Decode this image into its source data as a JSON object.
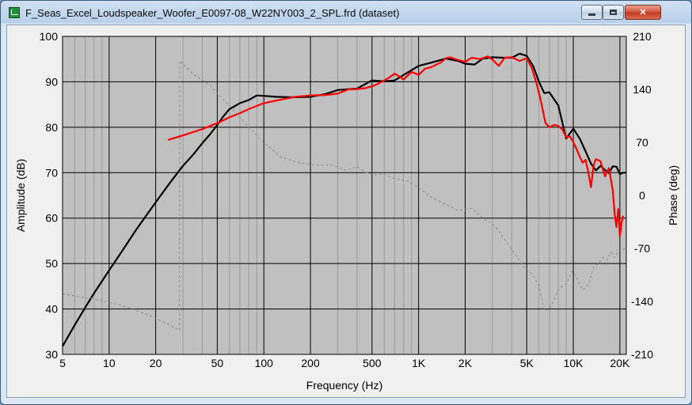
{
  "window": {
    "title": "F_Seas_Excel_Loudspeaker_Woofer_E0097-08_W22NY003_2_SPL.frd (dataset)",
    "minimize_label": "",
    "maximize_label": "",
    "close_label": "✕"
  },
  "chart_data": {
    "type": "line",
    "title": "",
    "xlabel": "Frequency (Hz)",
    "ylabel": "Amplitude (dB)",
    "y2label": "Phase (deg)",
    "xscale": "log",
    "xlim": [
      5,
      22000
    ],
    "ylim": [
      30,
      100
    ],
    "y2lim": [
      -210,
      210
    ],
    "grid": true,
    "background": "#c0c0c0",
    "x_ticks": [
      5,
      10,
      20,
      50,
      100,
      200,
      500,
      1000,
      2000,
      5000,
      10000,
      20000
    ],
    "x_tick_labels": [
      "5",
      "10",
      "20",
      "50",
      "100",
      "200",
      "500",
      "1K",
      "2K",
      "5K",
      "10K",
      "20K"
    ],
    "y_ticks": [
      30,
      40,
      50,
      60,
      70,
      80,
      90,
      100
    ],
    "y_tick_labels": [
      "30",
      "40",
      "50",
      "60",
      "70",
      "80",
      "90",
      "100"
    ],
    "y2_ticks": [
      -210,
      -140,
      -70,
      0,
      70,
      140,
      210
    ],
    "y2_tick_labels": [
      "-210",
      "-140",
      "-70",
      "0",
      "70",
      "140",
      "210"
    ],
    "series": [
      {
        "color": "#000000",
        "style": "solid",
        "axis": "left",
        "x": [
          5,
          6,
          7,
          8,
          10,
          12,
          15,
          20,
          25,
          30,
          35,
          40,
          45,
          50,
          55,
          60,
          70,
          80,
          90,
          100,
          120,
          150,
          200,
          250,
          300,
          400,
          500,
          600,
          700,
          800,
          1000,
          1200,
          1500,
          1800,
          2000,
          2300,
          2600,
          3000,
          3500,
          4000,
          4500,
          5000,
          5500,
          6000,
          6500,
          7000,
          7500,
          8000,
          9000,
          10000,
          11000,
          12000,
          13000,
          14000,
          15000,
          16000,
          17000,
          18000,
          19000,
          20000,
          21000,
          22000
        ],
        "y": [
          31.8,
          36.5,
          40.3,
          43.5,
          48.5,
          52.5,
          57.5,
          63.5,
          68,
          71.5,
          74,
          76.5,
          78.5,
          80.5,
          82.5,
          84,
          85.3,
          86,
          87,
          86.9,
          86.7,
          86.6,
          86.7,
          87.3,
          88.2,
          88.5,
          90.3,
          90.1,
          90.3,
          91.5,
          93.5,
          94.2,
          95.1,
          94.6,
          94,
          93.8,
          95.1,
          95.4,
          95.3,
          95.3,
          96.2,
          95.7,
          93.5,
          90,
          87.5,
          87.7,
          86.2,
          84.8,
          77.5,
          79.7,
          77.5,
          74.7,
          72,
          70.5,
          71.5,
          70.6,
          69.9,
          71.4,
          71.3,
          69.7,
          70,
          70
        ]
      },
      {
        "color": "#ff0000",
        "style": "solid",
        "axis": "left",
        "x": [
          24,
          30,
          40,
          50,
          60,
          70,
          80,
          100,
          130,
          160,
          200,
          250,
          300,
          350,
          400,
          450,
          500,
          550,
          600,
          650,
          700,
          750,
          800,
          900,
          1000,
          1100,
          1200,
          1400,
          1500,
          1600,
          1800,
          2000,
          2200,
          2500,
          2800,
          3000,
          3300,
          3600,
          4000,
          4500,
          5000,
          5400,
          5800,
          6200,
          6600,
          7000,
          7500,
          8000,
          8500,
          9000,
          9500,
          10000,
          10500,
          11000,
          11500,
          12000,
          12500,
          13000,
          13500,
          14000,
          15000,
          16000,
          17000,
          18000,
          18500,
          19000,
          19500,
          20000,
          20500,
          21000
        ],
        "y": [
          77.2,
          78.2,
          79.6,
          80.9,
          82.2,
          83.1,
          84,
          85.3,
          86.1,
          86.7,
          87,
          87.1,
          87.4,
          88.3,
          88.4,
          88.6,
          89,
          89.6,
          90.3,
          91,
          91.8,
          91.2,
          90.5,
          92.2,
          91.5,
          92.9,
          93.2,
          94.3,
          95.2,
          95.4,
          94.8,
          94.4,
          95.3,
          95,
          95.6,
          94.9,
          93.5,
          95.3,
          95.4,
          94.6,
          95.2,
          93,
          89.5,
          85.5,
          81,
          80,
          80.5,
          80.3,
          79.5,
          77.8,
          78,
          76.7,
          75.2,
          73.5,
          72.2,
          72.8,
          70.1,
          66.8,
          71.5,
          73,
          72.5,
          69.2,
          71,
          66,
          61,
          58,
          62,
          56,
          59,
          60.5
        ]
      },
      {
        "color": "#8a8a8a",
        "style": "dashed",
        "axis": "right",
        "x": [
          5,
          8,
          12,
          18,
          24,
          28.5,
          28.6,
          35,
          45,
          60,
          80,
          100,
          130,
          170,
          220,
          280,
          340,
          400,
          460,
          530,
          600,
          700,
          850,
          1000,
          1200,
          1500,
          1800,
          2200,
          2600,
          3100,
          3600,
          4200,
          4800,
          5500,
          6000,
          6500,
          7000,
          7500,
          8000,
          8500,
          9000,
          9800,
          10600,
          11500,
          12500,
          13500,
          14500,
          15500,
          16500,
          17500,
          18500,
          19500,
          20500,
          21500,
          22000
        ],
        "y": [
          -130,
          -137,
          -145,
          -158,
          -170,
          -178,
          178,
          160,
          145,
          118,
          90,
          70,
          50,
          43,
          40,
          40,
          33,
          38,
          30,
          27,
          28,
          22,
          19,
          10,
          -2,
          -12,
          -20,
          -17,
          -30,
          -40,
          -58,
          -78,
          -95,
          -105,
          -120,
          -152,
          -150,
          -138,
          -125,
          -120,
          -117,
          -100,
          -110,
          -125,
          -118,
          -95,
          -90,
          -82,
          -85,
          -75,
          -82,
          -73,
          -73,
          -70,
          -70
        ]
      }
    ]
  }
}
